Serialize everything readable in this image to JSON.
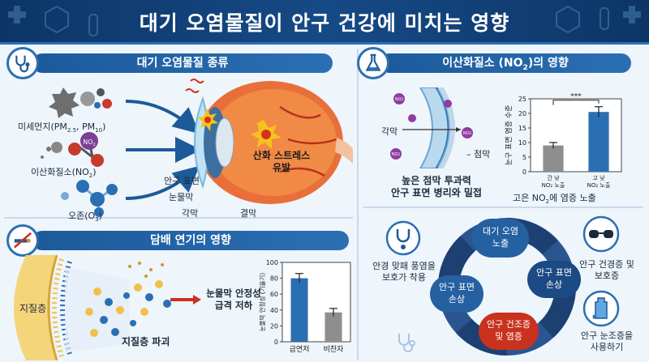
{
  "title": "대기 오염물질이 안구 건강에 미치는 영향",
  "pollutants": {
    "heading": "대기 오염물질 종류",
    "pm_label": "미세먼지(PM",
    "pm_sub1": "2.5",
    "pm_mid": ", PM",
    "pm_sub2": "10",
    "pm_end": ")",
    "no2_label": "이산화질소(NO",
    "no2_sub": "2",
    "no2_end": ")",
    "no2_molecule": "NO",
    "no2_molecule_sub": "2",
    "ozone_label": "오존(O",
    "ozone_sub": "3",
    "ozone_end": ")"
  },
  "eye": {
    "stress_line1": "산화 스트레스",
    "stress_line2": "유발",
    "ocular_surface": "안구 표면",
    "tear_film": "눈물막",
    "cornea": "각막",
    "conjunctiva": "결막"
  },
  "no2_effect": {
    "heading_pre": "이산화질소 (NO",
    "heading_sub": "2",
    "heading_post": ")의 영향",
    "cornea_label": "각막",
    "mucin_label": "점막",
    "molecule": "NO",
    "molecule_sub": "2",
    "caption_line1": "높은 점막 투과력",
    "caption_line2": "안구 표면 병리와 밀접",
    "chart_caption_pre": "고은 NO",
    "chart_caption_sub": "2",
    "chart_caption_post": "에 염증 노출"
  },
  "smoke": {
    "heading": "담배 연기의 영향",
    "lipid_label": "지질층",
    "lipid_break": "지질층 파괴",
    "result_line1": "눈물막 안정성",
    "result_line2": "급격 저하"
  },
  "cycle": {
    "node_top_line1": "대기 오염",
    "node_top_line2": "노출",
    "node_right_line1": "안구 표면",
    "node_right_line2": "손상",
    "node_bottom_line1": "안구 건조증",
    "node_bottom_line2": "및 염증",
    "node_left_line1": "안구 표면",
    "node_left_line2": "손상",
    "tip_goggles_line1": "안경 맞패 풍염을",
    "tip_goggles_line2": "보호가 착용",
    "tip_glasses_line1": "안구 건경증 및",
    "tip_glasses_line2": "보호증",
    "tip_drops_line1": "안구 눈조증을",
    "tip_drops_line2": "사용하기"
  },
  "colors": {
    "navy": "#0c3566",
    "blue": "#2b6fb3",
    "red": "#c8321e",
    "grey_bar": "#8e8e8e"
  },
  "chart_data": [
    {
      "type": "bar",
      "ylabel": "눈구 표면 염증 수준",
      "ylim": [
        0,
        25
      ],
      "yticks": [
        0,
        5,
        10,
        15,
        20,
        25
      ],
      "categories": [
        "간 낮 NO₂ 노출",
        "고 낮 NO₂ 노출"
      ],
      "cat_line1": [
        "간 낮",
        "고 낮"
      ],
      "cat_line2": [
        "NO₂ 노출",
        "NO₂ 노출"
      ],
      "values": [
        9,
        20.5
      ],
      "errors": [
        1.0,
        1.8
      ],
      "bar_colors": [
        "#8e8e8e",
        "#2b6fb3"
      ],
      "significance": "***"
    },
    {
      "type": "bar",
      "ylabel": "눈물막 안정성 (기울기)",
      "ylim": [
        0,
        100
      ],
      "yticks": [
        0,
        20,
        40,
        60,
        80,
        100
      ],
      "categories": [
        "금연저",
        "비찬자"
      ],
      "values": [
        80,
        37
      ],
      "errors": [
        6,
        5
      ],
      "bar_colors": [
        "#2b6fb3",
        "#8e8e8e"
      ]
    }
  ]
}
